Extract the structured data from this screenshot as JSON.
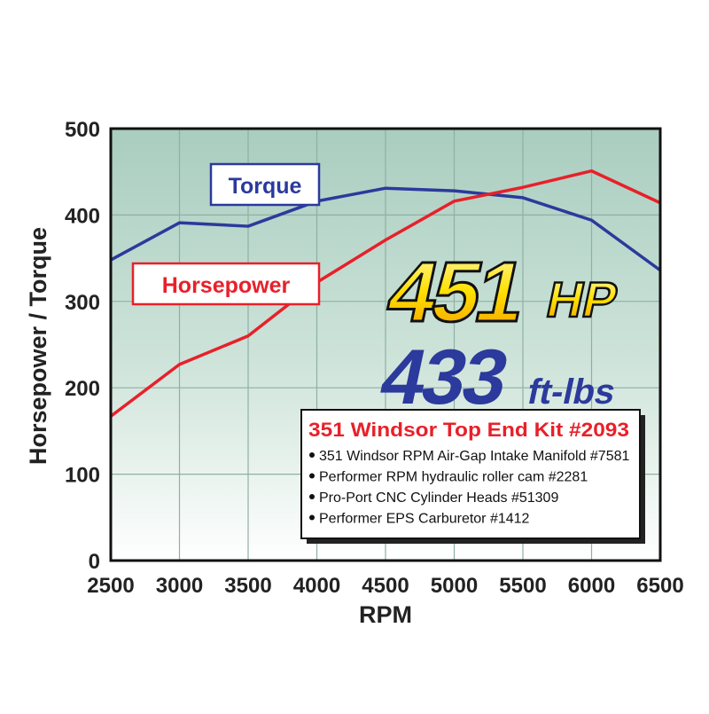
{
  "chart_data": {
    "type": "line",
    "xlabel": "RPM",
    "ylabel": "Horsepower / Torque",
    "xlim": [
      2500,
      6500
    ],
    "ylim": [
      0,
      500
    ],
    "x": [
      2500,
      3000,
      3500,
      4000,
      4500,
      5000,
      5500,
      6000,
      6500
    ],
    "x_ticks": [
      "2500",
      "3000",
      "3500",
      "4000",
      "4500",
      "5000",
      "5500",
      "6000",
      "6500"
    ],
    "y_ticks": [
      "0",
      "100",
      "200",
      "300",
      "400",
      "500"
    ],
    "grid": true,
    "series": [
      {
        "name": "Torque",
        "color": "#2b3a9c",
        "values": [
          348,
          391,
          387,
          416,
          431,
          428,
          420,
          394,
          336
        ]
      },
      {
        "name": "Horsepower",
        "color": "#e8202a",
        "values": [
          167,
          227,
          260,
          322,
          371,
          416,
          432,
          451,
          414
        ]
      }
    ],
    "annotations": {
      "peak_hp": "451",
      "peak_hp_unit": "HP",
      "peak_torque": "433",
      "peak_torque_unit": "ft-lbs"
    },
    "info_box": {
      "title": "351 Windsor Top End Kit #2093",
      "items": [
        "351 Windsor RPM Air-Gap Intake Manifold #7581",
        "Performer RPM hydraulic roller cam #2281",
        "Pro-Port CNC Cylinder Heads #51309",
        "Performer EPS Carburetor #1412"
      ]
    }
  }
}
